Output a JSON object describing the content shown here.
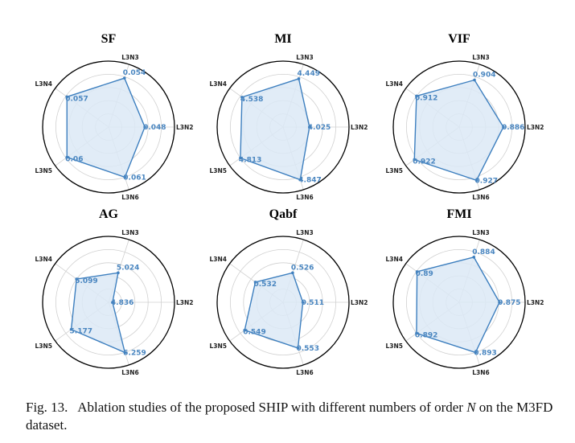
{
  "caption": {
    "label": "Fig. 13.",
    "text_before": "Ablation studies of the proposed SHIP with different numbers of order",
    "symbol": "N",
    "text_after": "on the M3FD dataset."
  },
  "colors": {
    "line": "#3d7fbf",
    "fill": "#dce9f6",
    "grid": "#d0d0d0",
    "ring": "#000000",
    "label": "#4a86c0"
  },
  "chart_data": [
    {
      "type": "radar",
      "title": "SF",
      "axes": [
        "L3N2",
        "L3N3",
        "L3N4",
        "L3N5",
        "L3N6"
      ],
      "values": [
        0.048,
        0.054,
        0.057,
        0.06,
        0.061
      ],
      "labels": [
        "0.048",
        "0.054",
        "0.057",
        "0.06",
        "0.061"
      ],
      "radii": [
        0.55,
        0.78,
        0.78,
        0.78,
        0.8
      ]
    },
    {
      "type": "radar",
      "title": "MI",
      "axes": [
        "L3N2",
        "L3N3",
        "L3N4",
        "L3N5",
        "L3N6"
      ],
      "values": [
        4.025,
        4.449,
        4.538,
        4.813,
        4.847
      ],
      "labels": [
        "4.025",
        "4.449",
        "4.538",
        "4.813",
        "4.847"
      ],
      "radii": [
        0.4,
        0.77,
        0.77,
        0.8,
        0.84
      ]
    },
    {
      "type": "radar",
      "title": "VIF",
      "axes": [
        "L3N2",
        "L3N3",
        "L3N4",
        "L3N5",
        "L3N6"
      ],
      "values": [
        0.886,
        0.904,
        0.912,
        0.922,
        0.927
      ],
      "labels": [
        "0.886",
        "0.904",
        "0.912",
        "0.922",
        "0.927"
      ],
      "radii": [
        0.67,
        0.75,
        0.8,
        0.84,
        0.85
      ]
    },
    {
      "type": "radar",
      "title": "AG",
      "axes": [
        "L3N2",
        "L3N3",
        "L3N4",
        "L3N5",
        "L3N6"
      ],
      "values": [
        4.836,
        5.024,
        5.099,
        5.177,
        5.259
      ],
      "labels": [
        "4.836",
        "5.024",
        "5.099",
        "5.177",
        "5.259"
      ],
      "radii": [
        0.06,
        0.47,
        0.6,
        0.7,
        0.8
      ]
    },
    {
      "type": "radar",
      "title": "Qabf",
      "axes": [
        "L3N2",
        "L3N3",
        "L3N4",
        "L3N5",
        "L3N6"
      ],
      "values": [
        0.511,
        0.526,
        0.532,
        0.549,
        0.553
      ],
      "labels": [
        "0.511",
        "0.526",
        "0.532",
        "0.549",
        "0.553"
      ],
      "radii": [
        0.3,
        0.47,
        0.52,
        0.72,
        0.73
      ]
    },
    {
      "type": "radar",
      "title": "FMI",
      "axes": [
        "L3N2",
        "L3N3",
        "L3N4",
        "L3N5",
        "L3N6"
      ],
      "values": [
        0.875,
        0.884,
        0.89,
        0.892,
        0.893
      ],
      "labels": [
        "0.875",
        "0.884",
        "0.89",
        "0.892",
        "0.893"
      ],
      "radii": [
        0.61,
        0.72,
        0.79,
        0.8,
        0.8
      ]
    }
  ]
}
